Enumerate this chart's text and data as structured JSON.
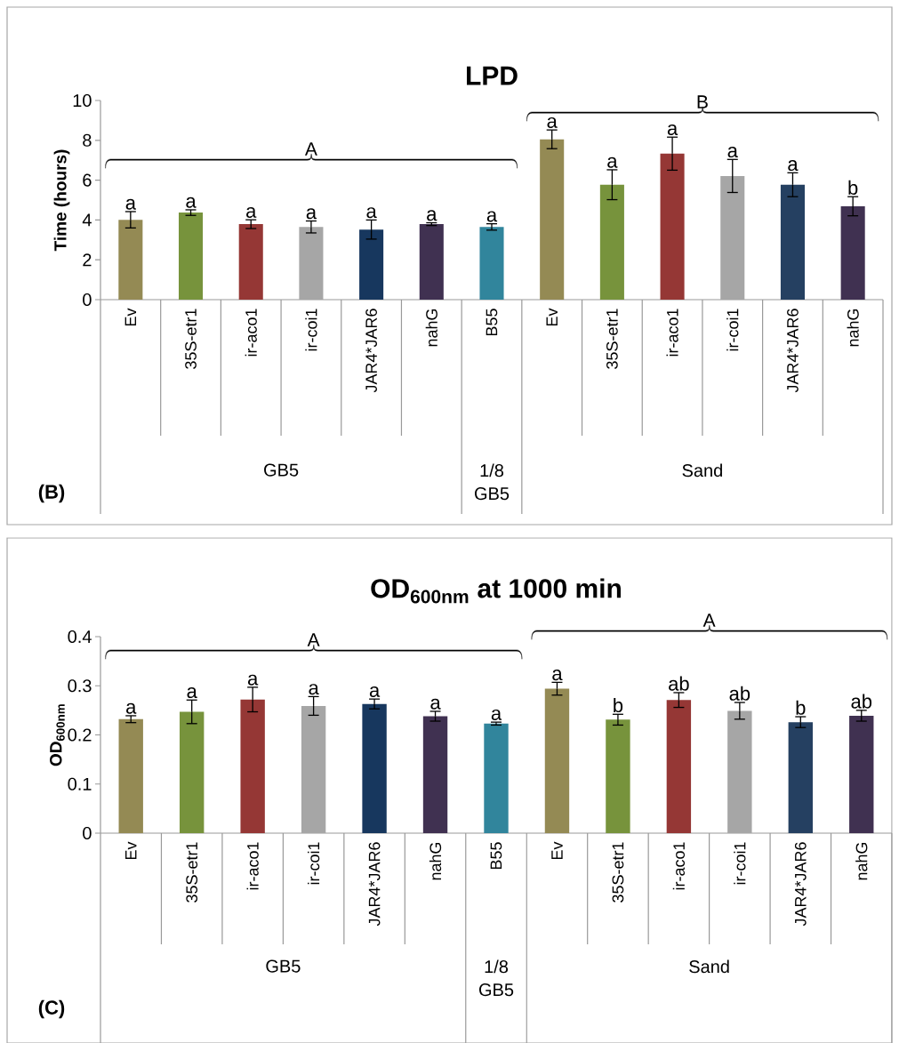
{
  "chart_data": [
    {
      "type": "bar",
      "title": "LPD",
      "ylabel": "Time (hours)",
      "categories": [
        "Ev",
        "35S-etr1",
        "ir-aco1",
        "ir-coi1",
        "JAR4*JAR6",
        "nahG",
        "B55",
        "Ev",
        "35S-etr1",
        "ir-aco1",
        "ir-coi1",
        "JAR4*JAR6",
        "nahG"
      ],
      "values": [
        4.01,
        4.37,
        3.79,
        3.65,
        3.52,
        3.79,
        3.65,
        8.05,
        5.77,
        7.33,
        6.21,
        5.77,
        4.69
      ],
      "errors": [
        0.41,
        0.14,
        0.22,
        0.3,
        0.48,
        0.07,
        0.16,
        0.47,
        0.75,
        0.83,
        0.83,
        0.6,
        0.48
      ],
      "colors": [
        "#948a54",
        "#77933c",
        "#953735",
        "#a6a6a6",
        "#17375e",
        "#403151",
        "#31859c",
        "#948a54",
        "#77933c",
        "#953735",
        "#a6a6a6",
        "#254061",
        "#403151"
      ],
      "value_labels": [
        "a",
        "a",
        "a",
        "a",
        "a",
        "a",
        "a",
        "a",
        "a",
        "a",
        "a",
        "a",
        "b"
      ],
      "ylim": [
        0,
        10
      ],
      "yticks": [
        0,
        2,
        4,
        6,
        8,
        10
      ],
      "annotations": [
        "A",
        "B",
        "GB5",
        "1/8 GB5",
        "Sand",
        "(B)"
      ]
    },
    {
      "type": "bar",
      "title": "OD$_{600nm}$ at 1000 min",
      "ylabel": "OD$_{600nm}$",
      "categories": [
        "Ev",
        "35S-etr1",
        "ir-aco1",
        "ir-coi1",
        "JAR4*JAR6",
        "nahG",
        "B55",
        "Ev",
        "35S-etr1",
        "ir-aco1",
        "ir-coi1",
        "JAR4*JAR6",
        "nahG"
      ],
      "values": [
        0.232,
        0.247,
        0.272,
        0.259,
        0.263,
        0.238,
        0.223,
        0.294,
        0.231,
        0.271,
        0.249,
        0.226,
        0.239
      ],
      "errors": [
        0.007,
        0.024,
        0.025,
        0.019,
        0.01,
        0.01,
        0.003,
        0.013,
        0.011,
        0.015,
        0.017,
        0.011,
        0.011
      ],
      "colors": [
        "#948a54",
        "#77933c",
        "#953735",
        "#a6a6a6",
        "#17375e",
        "#403151",
        "#31859c",
        "#948a54",
        "#77933c",
        "#953735",
        "#a6a6a6",
        "#254061",
        "#403151"
      ],
      "value_labels": [
        "a",
        "a",
        "a",
        "a",
        "a",
        "a",
        "a",
        "a",
        "b",
        "ab",
        "ab",
        "b",
        "ab"
      ],
      "ylim": [
        0,
        0.4
      ],
      "yticks": [
        0,
        0.1,
        0.2,
        0.3,
        0.4
      ],
      "annotations": [
        "A",
        "A",
        "GB5",
        "1/8 GB5",
        "Sand",
        "(C)"
      ]
    }
  ]
}
